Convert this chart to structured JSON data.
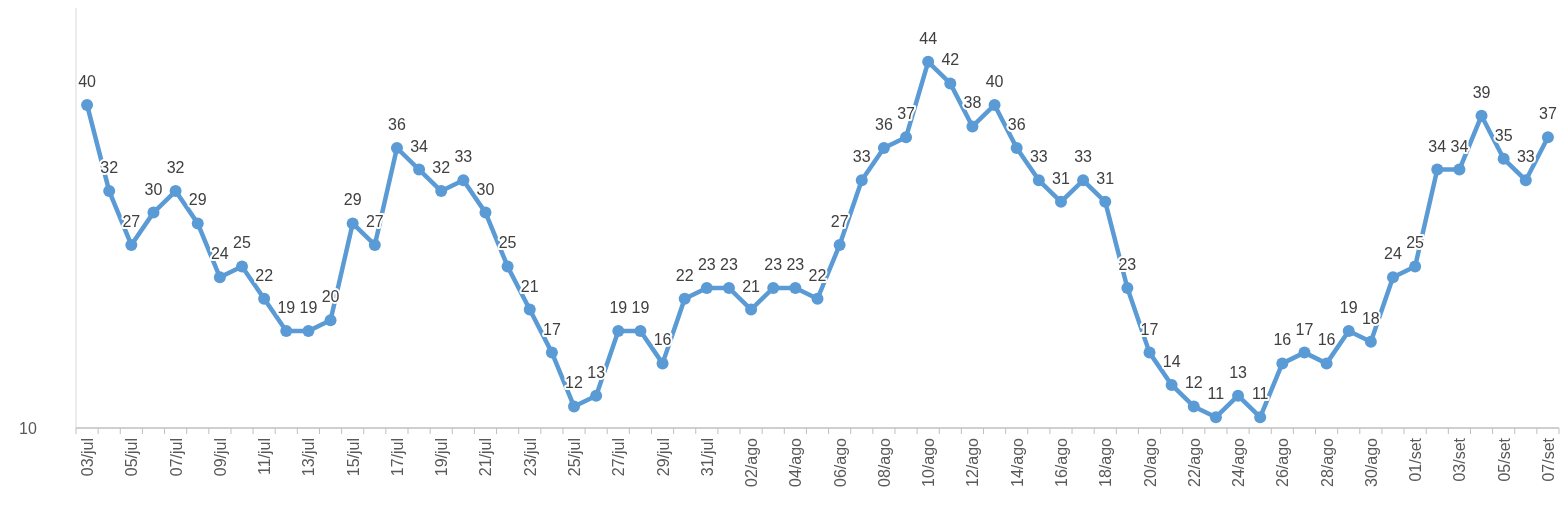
{
  "chart_data": {
    "type": "line",
    "categories": [
      "03/jul",
      null,
      "05/jul",
      null,
      "07/jul",
      null,
      "09/jul",
      null,
      "11/jul",
      null,
      "13/jul",
      null,
      "15/jul",
      null,
      "17/jul",
      null,
      "19/jul",
      null,
      "21/jul",
      null,
      "23/jul",
      null,
      "25/jul",
      null,
      "27/jul",
      null,
      "29/jul",
      null,
      "31/jul",
      null,
      "02/ago",
      null,
      "04/ago",
      null,
      "06/ago",
      null,
      "08/ago",
      null,
      "10/ago",
      null,
      "12/ago",
      null,
      "14/ago",
      null,
      "16/ago",
      null,
      "18/ago",
      null,
      "20/ago",
      null,
      "22/ago",
      null,
      "24/ago",
      null,
      "26/ago",
      null,
      "28/ago",
      null,
      "30/ago",
      null,
      "01/set",
      null,
      "03/set",
      null,
      "05/set",
      null,
      "07/set"
    ],
    "series": [
      {
        "color": "#5b9bd5",
        "values": [
          40,
          32,
          27,
          30,
          32,
          29,
          24,
          25,
          22,
          19,
          19,
          20,
          29,
          27,
          36,
          34,
          32,
          33,
          30,
          25,
          21,
          17,
          12,
          13,
          19,
          19,
          16,
          22,
          23,
          23,
          21,
          23,
          23,
          22,
          27,
          33,
          36,
          37,
          44,
          42,
          38,
          40,
          36,
          33,
          31,
          33,
          31,
          23,
          17,
          14,
          12,
          11,
          13,
          11,
          16,
          17,
          16,
          19,
          18,
          24,
          25,
          34,
          34,
          39,
          35,
          33,
          37
        ]
      }
    ],
    "ylim": [
      10,
      49
    ],
    "annotations": [
      "10"
    ],
    "marker": "circle",
    "line_style": "solid",
    "data_labels": true
  }
}
